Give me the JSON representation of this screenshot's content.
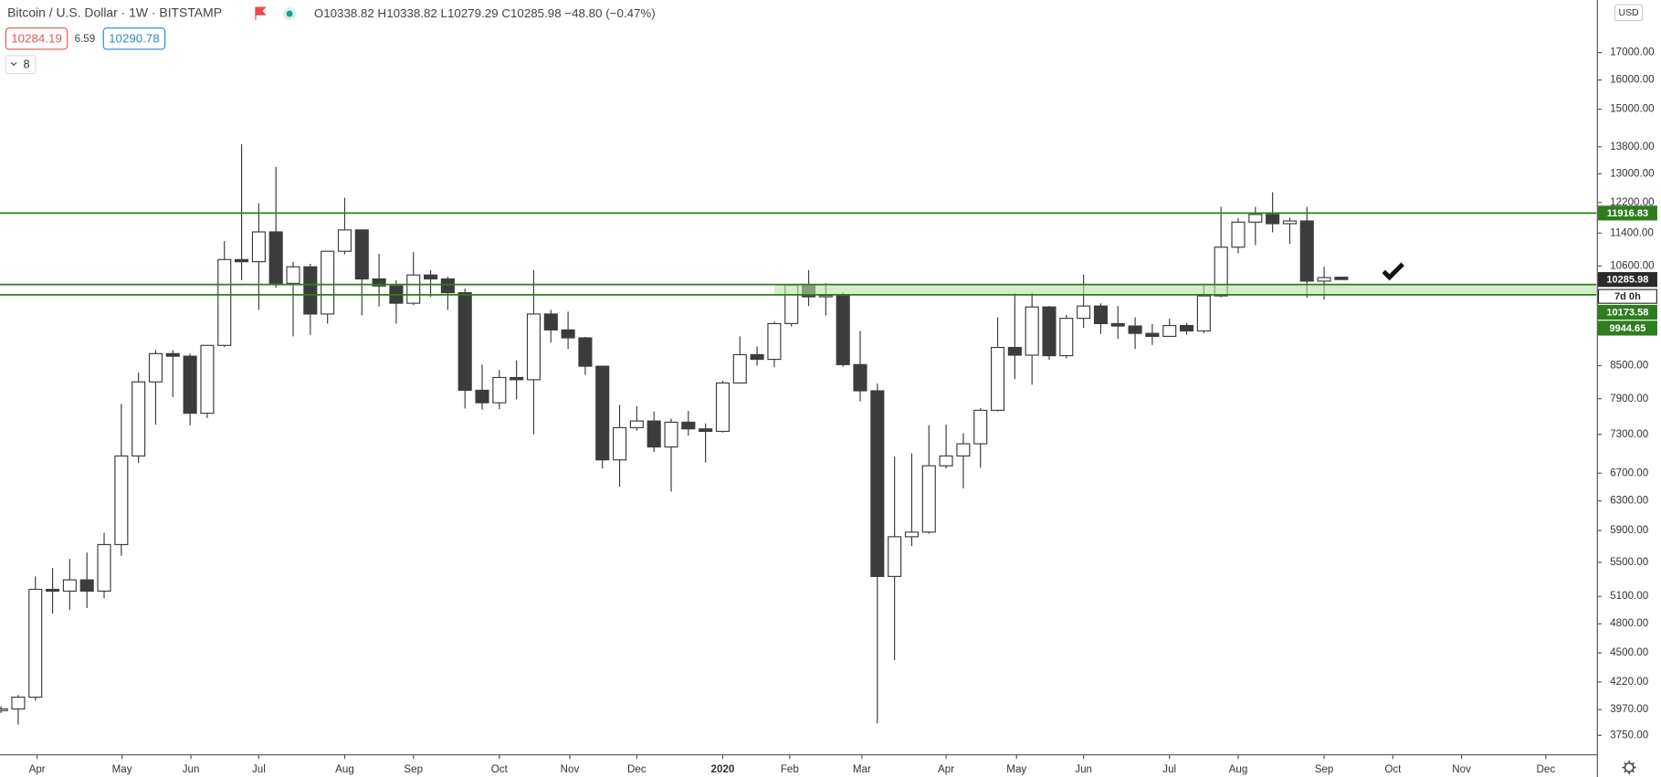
{
  "chart_data": {
    "type": "candlestick",
    "header": {
      "title": "Bitcoin / U.S. Dollar · 1W · BITSTAMP",
      "ohlc_letters": [
        "O",
        "H",
        "L",
        "C"
      ],
      "change": "−48.80 (−0.47%)",
      "bid": "10284.19",
      "spread": "6.59",
      "ask": "10290.78",
      "interval_count": 8,
      "currency": "USD",
      "countdown": "7d 0h"
    },
    "open": [
      3960,
      3975,
      4080,
      5180,
      5160,
      5290,
      5160,
      5720,
      6960,
      8200,
      8730,
      8680,
      7650,
      8890,
      10750,
      10700,
      11430,
      10200,
      10580,
      9530,
      10950,
      11480,
      10300,
      10140,
      9760,
      10390,
      10300,
      9990,
      8050,
      7830,
      8280,
      8240,
      9530,
      9200,
      9040,
      8490,
      6900,
      7410,
      7520,
      7100,
      7500,
      7390,
      7350,
      8180,
      8710,
      8620,
      9330,
      10160,
      9900,
      9930,
      8520,
      8040,
      5330,
      5820,
      5880,
      6810,
      6960,
      7150,
      7700,
      8850,
      8700,
      9680,
      8690,
      9440,
      9700,
      9330,
      9280,
      9130,
      9070,
      9290,
      9180,
      9920,
      11050,
      11680,
      11880,
      11640,
      11710,
      10250,
      10338.82
    ],
    "high": [
      4000,
      4100,
      5330,
      5430,
      5540,
      5620,
      5870,
      7810,
      8370,
      8800,
      8800,
      8730,
      8900,
      11200,
      13880,
      12180,
      13200,
      10700,
      10650,
      10950,
      12330,
      11480,
      10890,
      10270,
      10930,
      10500,
      10350,
      10080,
      8520,
      8420,
      8600,
      10500,
      9620,
      9580,
      9060,
      8500,
      7790,
      7770,
      7680,
      7560,
      7690,
      7480,
      8220,
      9070,
      8870,
      9370,
      10180,
      10500,
      10200,
      10000,
      9180,
      8170,
      6950,
      7000,
      7450,
      7460,
      7320,
      7740,
      9460,
      9980,
      9990,
      9700,
      9510,
      10400,
      9760,
      9700,
      9460,
      9320,
      9430,
      9340,
      10150,
      12080,
      11780,
      12080,
      12480,
      11800,
      12080,
      10580,
      10338.82
    ],
    "low": [
      3940,
      3840,
      4050,
      4910,
      4950,
      4970,
      5080,
      5580,
      6850,
      7460,
      7930,
      7450,
      7570,
      8860,
      10270,
      9620,
      10100,
      9070,
      9100,
      9330,
      10880,
      9500,
      9690,
      9330,
      9720,
      9900,
      9620,
      7730,
      7710,
      7720,
      7890,
      7300,
      8950,
      8820,
      8330,
      6770,
      6500,
      7360,
      7020,
      6430,
      7280,
      6860,
      7330,
      8180,
      8500,
      8470,
      9270,
      9700,
      9500,
      8480,
      7850,
      3850,
      4430,
      5700,
      5860,
      6770,
      6480,
      6780,
      7680,
      8250,
      8150,
      8610,
      8640,
      9240,
      9120,
      9020,
      8820,
      8900,
      9070,
      9100,
      9130,
      9890,
      10900,
      11100,
      11420,
      11130,
      9880,
      9840,
      10279.29
    ],
    "close": [
      3975,
      4080,
      5180,
      5160,
      5290,
      5160,
      5720,
      6960,
      8200,
      8730,
      8680,
      7650,
      8890,
      10750,
      10700,
      11430,
      10200,
      10580,
      9530,
      10950,
      11480,
      10300,
      10140,
      9760,
      10390,
      10300,
      9990,
      8050,
      7830,
      8280,
      8240,
      9530,
      9200,
      9040,
      8490,
      6900,
      7410,
      7520,
      7100,
      7500,
      7390,
      7350,
      8180,
      8710,
      8620,
      9330,
      10160,
      9900,
      9930,
      8520,
      8040,
      5330,
      5820,
      5880,
      6810,
      6960,
      7150,
      7700,
      8850,
      8700,
      9680,
      8690,
      9440,
      9700,
      9330,
      9280,
      9130,
      9070,
      9290,
      9180,
      9920,
      11050,
      11680,
      11880,
      11640,
      11710,
      10250,
      10330,
      10285.98
    ],
    "up_color": "#ffffff",
    "down_color": "#3c3c3c",
    "wick_color": "#3c3c3c",
    "levels": [
      11916.83,
      10173.58,
      9944.65
    ],
    "level_color": "#2e7d1f",
    "zone_color": "#b9e0a5",
    "log_scale": true,
    "xlim": [
      -0.06,
      92.84
    ],
    "xticks": [
      {
        "value": 2.1,
        "label": "Apr"
      },
      {
        "value": 7.04,
        "label": "May"
      },
      {
        "value": 11.05,
        "label": "Jun"
      },
      {
        "value": 15.0,
        "label": "Jul"
      },
      {
        "value": 20.0,
        "label": "Aug"
      },
      {
        "value": 24.0,
        "label": "Sep"
      },
      {
        "value": 29.0,
        "label": "Oct"
      },
      {
        "value": 33.1,
        "label": "Nov"
      },
      {
        "value": 37.0,
        "label": "Dec"
      },
      {
        "value": 42.0,
        "label": "2020"
      },
      {
        "value": 45.9,
        "label": "Feb"
      },
      {
        "value": 50.1,
        "label": "Mar"
      },
      {
        "value": 55.0,
        "label": "Apr"
      },
      {
        "value": 59.1,
        "label": "May"
      },
      {
        "value": 63.0,
        "label": "Jun"
      },
      {
        "value": 68.0,
        "label": "Jul"
      },
      {
        "value": 72.0,
        "label": "Aug"
      },
      {
        "value": 77.0,
        "label": "Sep"
      },
      {
        "value": 81.0,
        "label": "Oct"
      },
      {
        "value": 85.0,
        "label": "Nov"
      },
      {
        "value": 89.9,
        "label": "Dec"
      }
    ],
    "ylim": [
      3600,
      19100
    ],
    "yticks": [
      {
        "value": 17000,
        "label": "17000.00"
      },
      {
        "value": 16000,
        "label": "16000.00"
      },
      {
        "value": 15000,
        "label": "15000.00"
      },
      {
        "value": 13800,
        "label": "13800.00"
      },
      {
        "value": 13000,
        "label": "13000.00"
      },
      {
        "value": 12200,
        "label": "12200.00"
      },
      {
        "value": 11400,
        "label": "11400.00"
      },
      {
        "value": 10600,
        "label": "10600.00"
      },
      {
        "value": 8500,
        "label": "8500.00"
      },
      {
        "value": 7900,
        "label": "7900.00"
      },
      {
        "value": 7300,
        "label": "7300.00"
      },
      {
        "value": 6700,
        "label": "6700.00"
      },
      {
        "value": 6300,
        "label": "6300.00"
      },
      {
        "value": 5900,
        "label": "5900.00"
      },
      {
        "value": 5500,
        "label": "5500.00"
      },
      {
        "value": 5100,
        "label": "5100.00"
      },
      {
        "value": 4800,
        "label": "4800.00"
      },
      {
        "value": 4500,
        "label": "4500.00"
      },
      {
        "value": 4220,
        "label": "4220.00"
      },
      {
        "value": 3970,
        "label": "3970.00"
      },
      {
        "value": 3750,
        "label": "3750.00"
      }
    ]
  }
}
